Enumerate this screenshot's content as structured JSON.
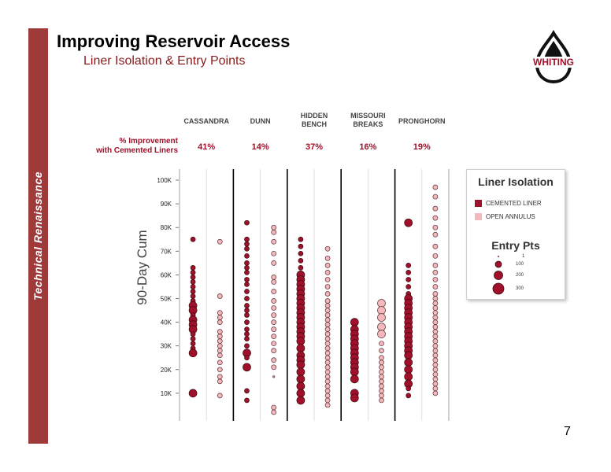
{
  "slide": {
    "title": "Improving Reservoir Access",
    "subtitle": "Liner Isolation & Entry Points",
    "sidebar_text": "Technical Renaissance",
    "page_number": "7",
    "logo_text": "WHITING",
    "accent_color": "#9e3a3a"
  },
  "chart_data": {
    "type": "scatter",
    "ylabel": "90-Day Cum",
    "ylim": [
      0,
      108000
    ],
    "y_ticks": [
      {
        "value": 10000,
        "label": "10K"
      },
      {
        "value": 20000,
        "label": "20K"
      },
      {
        "value": 30000,
        "label": "30K"
      },
      {
        "value": 40000,
        "label": "40K"
      },
      {
        "value": 50000,
        "label": "50K"
      },
      {
        "value": 60000,
        "label": "60K"
      },
      {
        "value": 70000,
        "label": "70K"
      },
      {
        "value": 80000,
        "label": "80K"
      },
      {
        "value": 90000,
        "label": "90K"
      },
      {
        "value": 100000,
        "label": "100K"
      }
    ],
    "improvement_label_line1": "% Improvement",
    "improvement_label_line2": "with Cemented Liners",
    "colors": {
      "cemented": "#a0102a",
      "open": "#f2b8bb",
      "outline": "#3a0a10"
    },
    "groups": [
      {
        "name_lines": [
          "CASSANDRA"
        ],
        "improvement": "41%",
        "cemented": [
          [
            75000,
            1
          ],
          [
            63000,
            1
          ],
          [
            61000,
            1
          ],
          [
            59000,
            1
          ],
          [
            57000,
            1
          ],
          [
            55000,
            1
          ],
          [
            53000,
            1
          ],
          [
            51000,
            1
          ],
          [
            49000,
            1
          ],
          [
            47000,
            2
          ],
          [
            45000,
            2
          ],
          [
            43000,
            1
          ],
          [
            41000,
            2
          ],
          [
            39000,
            2
          ],
          [
            37000,
            2
          ],
          [
            35000,
            1
          ],
          [
            33000,
            1
          ],
          [
            31000,
            1
          ],
          [
            29000,
            1
          ],
          [
            27000,
            2
          ],
          [
            10000,
            2
          ]
        ],
        "open": [
          [
            74000,
            1
          ],
          [
            51000,
            1
          ],
          [
            44000,
            1
          ],
          [
            42000,
            1
          ],
          [
            40000,
            1
          ],
          [
            36000,
            1
          ],
          [
            34000,
            1
          ],
          [
            32000,
            1
          ],
          [
            30000,
            1
          ],
          [
            28000,
            1
          ],
          [
            26000,
            1
          ],
          [
            23000,
            1
          ],
          [
            20000,
            1
          ],
          [
            17000,
            1
          ],
          [
            15000,
            1
          ],
          [
            9000,
            1
          ]
        ]
      },
      {
        "name_lines": [
          "DUNN"
        ],
        "improvement": "14%",
        "cemented": [
          [
            82000,
            1
          ],
          [
            75000,
            1
          ],
          [
            73000,
            1
          ],
          [
            71000,
            1
          ],
          [
            68000,
            1
          ],
          [
            65000,
            1
          ],
          [
            63000,
            1
          ],
          [
            61000,
            1
          ],
          [
            58000,
            1
          ],
          [
            56000,
            1
          ],
          [
            53000,
            1
          ],
          [
            50000,
            1
          ],
          [
            47000,
            1
          ],
          [
            45000,
            1
          ],
          [
            43000,
            1
          ],
          [
            40000,
            1
          ],
          [
            37000,
            1
          ],
          [
            35000,
            1
          ],
          [
            33000,
            1
          ],
          [
            30000,
            1
          ],
          [
            27000,
            2
          ],
          [
            25000,
            1
          ],
          [
            21000,
            2
          ],
          [
            11000,
            1
          ],
          [
            7000,
            1
          ]
        ],
        "open": [
          [
            80000,
            1
          ],
          [
            78000,
            1
          ],
          [
            74000,
            1
          ],
          [
            69000,
            1
          ],
          [
            65000,
            1
          ],
          [
            59000,
            1
          ],
          [
            57000,
            1
          ],
          [
            53000,
            1
          ],
          [
            49000,
            1
          ],
          [
            46000,
            1
          ],
          [
            43000,
            1
          ],
          [
            40000,
            1
          ],
          [
            37000,
            1
          ],
          [
            34000,
            1
          ],
          [
            31000,
            1
          ],
          [
            28000,
            1
          ],
          [
            24000,
            1
          ],
          [
            21000,
            1
          ],
          [
            17000,
            0
          ],
          [
            4000,
            1
          ],
          [
            2000,
            1
          ]
        ]
      },
      {
        "name_lines": [
          "HIDDEN",
          "BENCH"
        ],
        "improvement": "37%",
        "cemented": [
          [
            75000,
            1
          ],
          [
            72000,
            1
          ],
          [
            69000,
            1
          ],
          [
            66000,
            1
          ],
          [
            63000,
            1
          ],
          [
            60000,
            2
          ],
          [
            58000,
            2
          ],
          [
            56000,
            2
          ],
          [
            54000,
            2
          ],
          [
            52000,
            2
          ],
          [
            50000,
            2
          ],
          [
            48000,
            2
          ],
          [
            46000,
            2
          ],
          [
            44000,
            2
          ],
          [
            42000,
            2
          ],
          [
            40000,
            2
          ],
          [
            38000,
            2
          ],
          [
            36000,
            2
          ],
          [
            34000,
            2
          ],
          [
            32000,
            2
          ],
          [
            29000,
            2
          ],
          [
            26000,
            2
          ],
          [
            24000,
            2
          ],
          [
            22000,
            2
          ],
          [
            19000,
            2
          ],
          [
            16000,
            2
          ],
          [
            13000,
            2
          ],
          [
            10000,
            2
          ],
          [
            7000,
            2
          ]
        ],
        "open": [
          [
            71000,
            1
          ],
          [
            67000,
            1
          ],
          [
            64000,
            1
          ],
          [
            61000,
            1
          ],
          [
            58000,
            1
          ],
          [
            55000,
            1
          ],
          [
            52000,
            1
          ],
          [
            49000,
            1
          ],
          [
            47000,
            1
          ],
          [
            45000,
            1
          ],
          [
            43000,
            1
          ],
          [
            41000,
            1
          ],
          [
            39000,
            1
          ],
          [
            37000,
            1
          ],
          [
            35000,
            1
          ],
          [
            33000,
            1
          ],
          [
            31000,
            1
          ],
          [
            29000,
            1
          ],
          [
            27000,
            1
          ],
          [
            25000,
            1
          ],
          [
            23000,
            1
          ],
          [
            21000,
            1
          ],
          [
            19000,
            1
          ],
          [
            17000,
            1
          ],
          [
            15000,
            1
          ],
          [
            13000,
            1
          ],
          [
            11000,
            1
          ],
          [
            9000,
            1
          ],
          [
            7000,
            1
          ],
          [
            5000,
            1
          ]
        ]
      },
      {
        "name_lines": [
          "MISSOURI",
          "BREAKS"
        ],
        "improvement": "16%",
        "cemented": [
          [
            40000,
            2
          ],
          [
            37000,
            2
          ],
          [
            35000,
            2
          ],
          [
            33000,
            2
          ],
          [
            31000,
            2
          ],
          [
            29000,
            2
          ],
          [
            27000,
            2
          ],
          [
            25000,
            2
          ],
          [
            23000,
            2
          ],
          [
            21000,
            2
          ],
          [
            19000,
            2
          ],
          [
            16000,
            2
          ],
          [
            10000,
            2
          ],
          [
            8000,
            2
          ]
        ],
        "open": [
          [
            48000,
            2
          ],
          [
            45000,
            2
          ],
          [
            42000,
            2
          ],
          [
            38000,
            2
          ],
          [
            35000,
            2
          ],
          [
            31000,
            1
          ],
          [
            28000,
            1
          ],
          [
            25000,
            1
          ],
          [
            23000,
            1
          ],
          [
            21000,
            1
          ],
          [
            19000,
            1
          ],
          [
            17000,
            1
          ],
          [
            15000,
            1
          ],
          [
            13000,
            1
          ],
          [
            11000,
            1
          ],
          [
            9000,
            1
          ],
          [
            7000,
            1
          ]
        ]
      },
      {
        "name_lines": [
          "PRONGHORN"
        ],
        "improvement": "19%",
        "cemented": [
          [
            82000,
            2
          ],
          [
            64000,
            1
          ],
          [
            61000,
            1
          ],
          [
            58000,
            1
          ],
          [
            55000,
            1
          ],
          [
            52000,
            1
          ],
          [
            50000,
            2
          ],
          [
            48000,
            2
          ],
          [
            46000,
            2
          ],
          [
            44000,
            2
          ],
          [
            42000,
            2
          ],
          [
            40000,
            2
          ],
          [
            38000,
            2
          ],
          [
            36000,
            2
          ],
          [
            34000,
            2
          ],
          [
            32000,
            2
          ],
          [
            30000,
            2
          ],
          [
            28000,
            2
          ],
          [
            26000,
            2
          ],
          [
            23000,
            2
          ],
          [
            20000,
            2
          ],
          [
            17000,
            2
          ],
          [
            14000,
            2
          ],
          [
            12000,
            1
          ],
          [
            9000,
            1
          ]
        ],
        "open": [
          [
            97000,
            1
          ],
          [
            93000,
            1
          ],
          [
            88000,
            1
          ],
          [
            84000,
            1
          ],
          [
            80000,
            1
          ],
          [
            77000,
            1
          ],
          [
            72000,
            1
          ],
          [
            68000,
            1
          ],
          [
            64000,
            1
          ],
          [
            61000,
            1
          ],
          [
            58000,
            1
          ],
          [
            55000,
            1
          ],
          [
            52000,
            1
          ],
          [
            50000,
            1
          ],
          [
            48000,
            1
          ],
          [
            46000,
            1
          ],
          [
            44000,
            1
          ],
          [
            42000,
            1
          ],
          [
            40000,
            1
          ],
          [
            38000,
            1
          ],
          [
            36000,
            1
          ],
          [
            34000,
            1
          ],
          [
            32000,
            1
          ],
          [
            30000,
            1
          ],
          [
            28000,
            1
          ],
          [
            26000,
            1
          ],
          [
            24000,
            1
          ],
          [
            22000,
            1
          ],
          [
            20000,
            1
          ],
          [
            18000,
            1
          ],
          [
            16000,
            1
          ],
          [
            14000,
            1
          ],
          [
            12000,
            1
          ],
          [
            10000,
            1
          ]
        ]
      }
    ],
    "legend": {
      "title": "Liner Isolation",
      "items": [
        "CEMENTED LINER",
        "OPEN ANNULUS"
      ],
      "size_title": "Entry Pts",
      "sizes": [
        "1",
        "100",
        "200",
        "300"
      ]
    }
  }
}
